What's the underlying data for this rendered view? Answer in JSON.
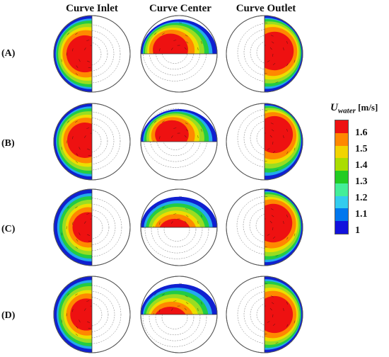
{
  "columns": [
    "Curve Inlet",
    "Curve Center",
    "Curve Outlet"
  ],
  "rows": [
    "(A)",
    "(B)",
    "(C)",
    "(D)"
  ],
  "legend": {
    "variable": "U",
    "subscript": "water",
    "unit": "[m/s]",
    "ticks": [
      "1.6",
      "1.5",
      "1.4",
      "1.3",
      "1.2",
      "1.1",
      "1"
    ],
    "colors": [
      "#ee1111",
      "#ff8800",
      "#f2d400",
      "#aadd00",
      "#22cc22",
      "#44ee99",
      "#33ccee",
      "#0077ee",
      "#1111dd"
    ]
  },
  "contour_colors": {
    "outer": "#1020d0",
    "band1": "#22aaee",
    "band2": "#22cc44",
    "band3": "#99dd22",
    "band4": "#eedd00",
    "band5": "#ff8800",
    "core": "#ee1111",
    "outline": "#555555"
  }
}
